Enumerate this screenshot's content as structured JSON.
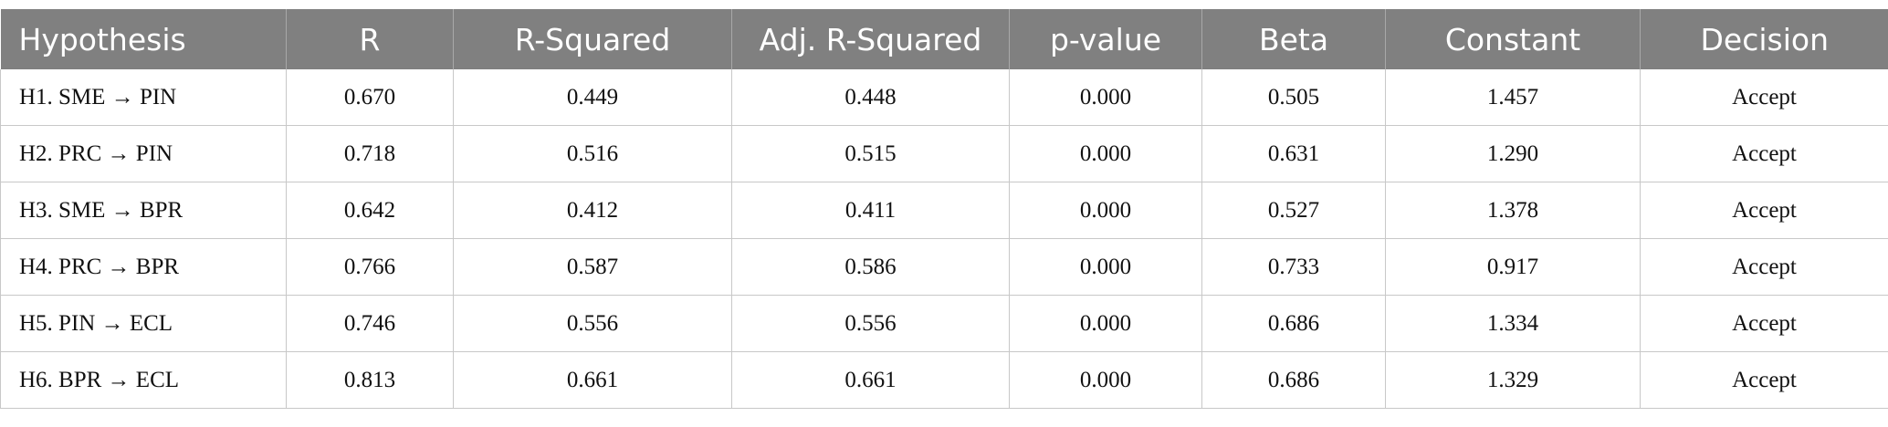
{
  "table": {
    "header": [
      "Hypothesis",
      "R",
      "R-Squared",
      "Adj. R-Squared",
      "p-value",
      "Beta",
      "Constant",
      "Decision"
    ],
    "rows": [
      [
        "H1. SME → PIN",
        "0.670",
        "0.449",
        "0.448",
        "0.000",
        "0.505",
        "1.457",
        "Accept"
      ],
      [
        "H2. PRC → PIN",
        "0.718",
        "0.516",
        "0.515",
        "0.000",
        "0.631",
        "1.290",
        "Accept"
      ],
      [
        "H3. SME → BPR",
        "0.642",
        "0.412",
        "0.411",
        "0.000",
        "0.527",
        "1.378",
        "Accept"
      ],
      [
        "H4. PRC → BPR",
        "0.766",
        "0.587",
        "0.586",
        "0.000",
        "0.733",
        "0.917",
        "Accept"
      ],
      [
        "H5. PIN → ECL",
        "0.746",
        "0.556",
        "0.556",
        "0.000",
        "0.686",
        "1.334",
        "Accept"
      ],
      [
        "H6. BPR → ECL",
        "0.813",
        "0.661",
        "0.661",
        "0.000",
        "0.686",
        "1.329",
        "Accept"
      ]
    ]
  }
}
